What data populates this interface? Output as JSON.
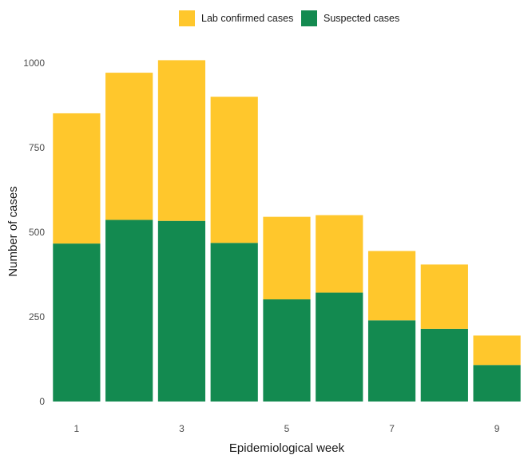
{
  "chart_data": {
    "type": "bar",
    "stacked": true,
    "xlabel": "Epidemiological week",
    "ylabel": "Number of cases",
    "categories": [
      "1",
      "2",
      "3",
      "4",
      "5",
      "6",
      "7",
      "8",
      "9"
    ],
    "x_tick_labels": [
      "1",
      "3",
      "5",
      "7",
      "9"
    ],
    "y_ticks": [
      0,
      250,
      500,
      750,
      1000
    ],
    "ylim": [
      0,
      1010
    ],
    "grid": false,
    "legend_position": "top",
    "series": [
      {
        "name": "Suspected cases",
        "color": "#138a50",
        "values": [
          467,
          537,
          534,
          469,
          302,
          322,
          240,
          215,
          108
        ]
      },
      {
        "name": "Lab confirmed cases",
        "color": "#ffc72c",
        "values": [
          385,
          435,
          475,
          432,
          244,
          229,
          205,
          190,
          87
        ]
      }
    ],
    "legend_order": [
      "Lab confirmed cases",
      "Suspected cases"
    ]
  }
}
